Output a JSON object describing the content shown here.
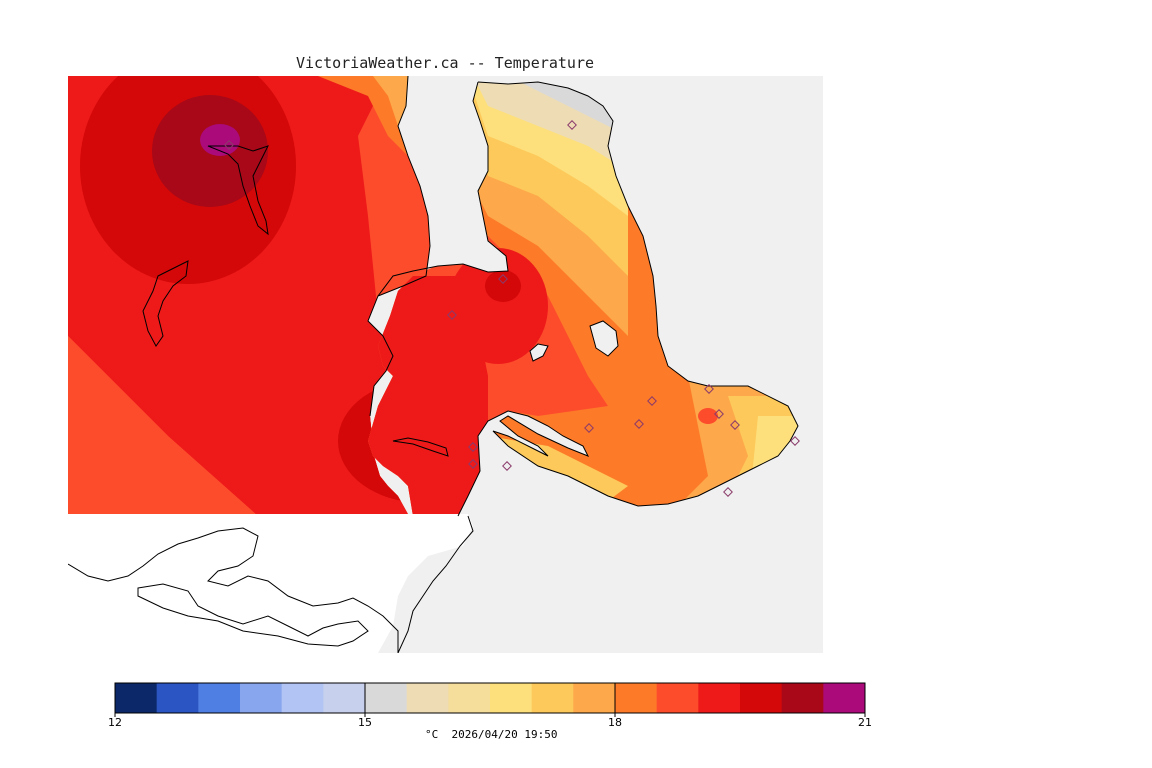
{
  "title": "VictoriaWeather.ca -- Temperature",
  "legend": {
    "min": 12,
    "max": 21,
    "tick_labels": [
      "12",
      "15",
      "18",
      "21"
    ],
    "tick_values": [
      12,
      15,
      18,
      21
    ],
    "colors": [
      "#0d2868",
      "#2a55c2",
      "#4f7fe2",
      "#88a6ee",
      "#b2c4f4",
      "#c7d0ec",
      "#d9d9d9",
      "#eedcb4",
      "#f5dd9c",
      "#fde07c",
      "#fdc95a",
      "#fda84a",
      "#fd7a28",
      "#fd4c2c",
      "#ee1a1a",
      "#d40808",
      "#a80818",
      "#aa0a7a"
    ]
  },
  "caption": "°C  2026/04/20 19:50",
  "colors": {
    "map_background": "#f0f0f0",
    "land_outside": "#ffffff",
    "coastline": "#000000",
    "station_marker": "#8a3a6a"
  }
}
